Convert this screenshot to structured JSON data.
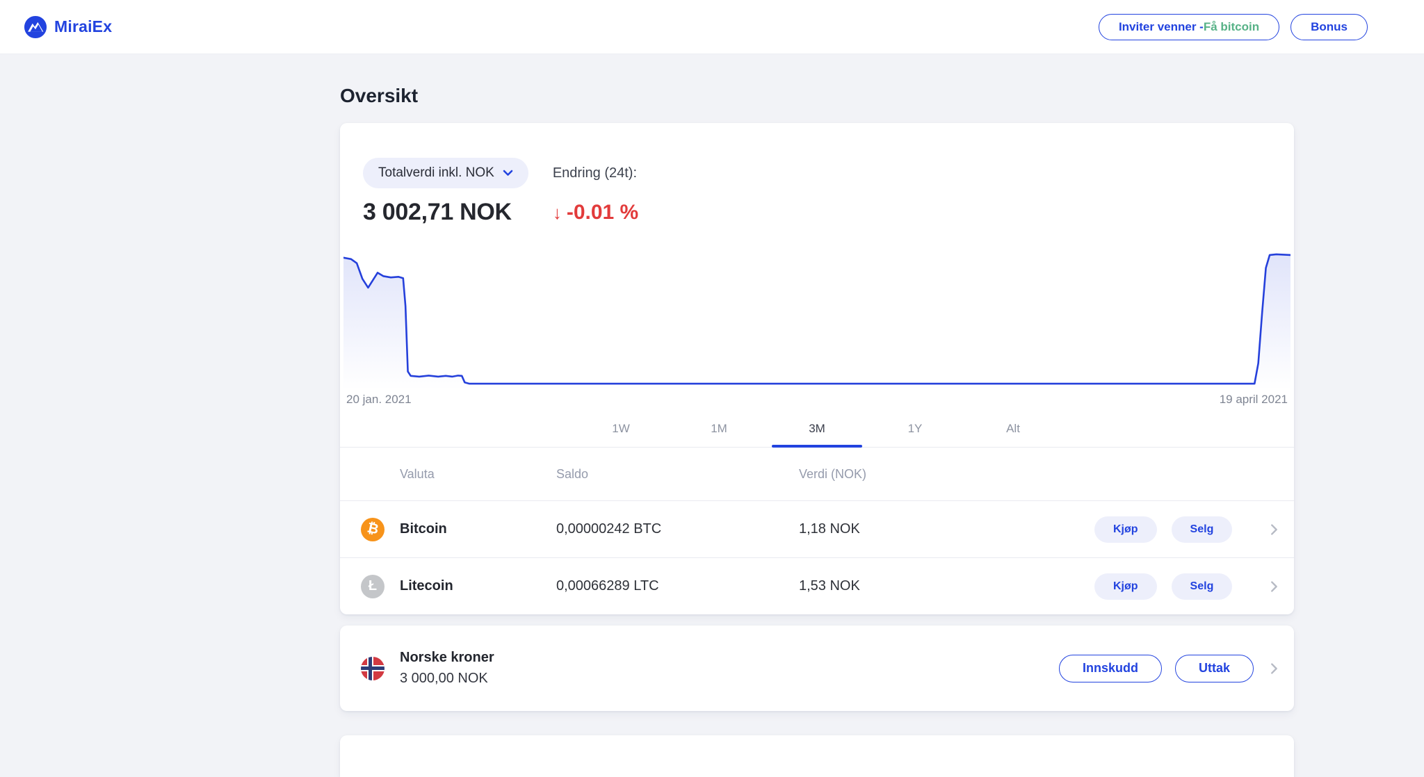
{
  "header": {
    "brand": "MiraiEx",
    "invite_prefix": "Inviter venner - ",
    "invite_highlight": "Få bitcoin",
    "bonus": "Bonus"
  },
  "page": {
    "title": "Oversikt"
  },
  "overview": {
    "selector_label": "Totalverdi inkl. NOK",
    "total_value": "3 002,71 NOK",
    "change_label": "Endring (24t):",
    "change_arrow": "↓",
    "change_value": "-0.01 %",
    "change_direction": "down"
  },
  "chart_data": {
    "type": "area",
    "title": "Portfolio total value (3M)",
    "y_unit": "NOK",
    "y_relative": true,
    "x_start_label": "20 jan. 2021",
    "x_end_label": "19 april 2021",
    "points": [
      [
        0.0,
        0.955
      ],
      [
        0.008,
        0.945
      ],
      [
        0.014,
        0.915
      ],
      [
        0.02,
        0.8
      ],
      [
        0.026,
        0.735
      ],
      [
        0.031,
        0.79
      ],
      [
        0.036,
        0.845
      ],
      [
        0.042,
        0.82
      ],
      [
        0.05,
        0.81
      ],
      [
        0.058,
        0.815
      ],
      [
        0.063,
        0.805
      ],
      [
        0.0655,
        0.6
      ],
      [
        0.068,
        0.12
      ],
      [
        0.071,
        0.088
      ],
      [
        0.08,
        0.082
      ],
      [
        0.09,
        0.09
      ],
      [
        0.1,
        0.082
      ],
      [
        0.108,
        0.088
      ],
      [
        0.115,
        0.082
      ],
      [
        0.121,
        0.09
      ],
      [
        0.125,
        0.088
      ],
      [
        0.128,
        0.04
      ],
      [
        0.133,
        0.03
      ],
      [
        0.3,
        0.03
      ],
      [
        0.5,
        0.03
      ],
      [
        0.7,
        0.03
      ],
      [
        0.9,
        0.03
      ],
      [
        0.962,
        0.03
      ],
      [
        0.966,
        0.18
      ],
      [
        0.97,
        0.55
      ],
      [
        0.974,
        0.88
      ],
      [
        0.978,
        0.975
      ],
      [
        0.985,
        0.98
      ],
      [
        1.0,
        0.975
      ]
    ]
  },
  "tabs": [
    {
      "label": "1W",
      "active": false
    },
    {
      "label": "1M",
      "active": false
    },
    {
      "label": "3M",
      "active": true
    },
    {
      "label": "1Y",
      "active": false
    },
    {
      "label": "Alt",
      "active": false
    }
  ],
  "table": {
    "headers": [
      "Valuta",
      "Saldo",
      "Verdi (NOK)"
    ],
    "rows": [
      {
        "name": "Bitcoin",
        "symbol": "₿",
        "balance": "0,00000242 BTC",
        "value": "1,18 NOK",
        "buy_label": "Kjøp",
        "sell_label": "Selg"
      },
      {
        "name": "Litecoin",
        "symbol": "Ł",
        "balance": "0,00066289 LTC",
        "value": "1,53 NOK",
        "buy_label": "Kjøp",
        "sell_label": "Selg"
      }
    ]
  },
  "fiat": {
    "name": "Norske kroner",
    "balance": "3 000,00 NOK",
    "deposit_label": "Innskudd",
    "withdraw_label": "Uttak"
  },
  "colors": {
    "accent": "#2243df",
    "green": "#57b287",
    "red": "#e23b3b",
    "bitcoin": "#f7931a",
    "litecoin": "#c4c6c9",
    "flag_red": "#d23a42",
    "flag_navy": "#2d3c77",
    "page_bg": "#f2f3f7",
    "pill_bg": "#edeffb",
    "text_dark": "#23262e",
    "text_gray": "#959bac",
    "text_mid": "#3c414d",
    "divider": "#e9eaf0",
    "chart_line": "#2540db"
  }
}
